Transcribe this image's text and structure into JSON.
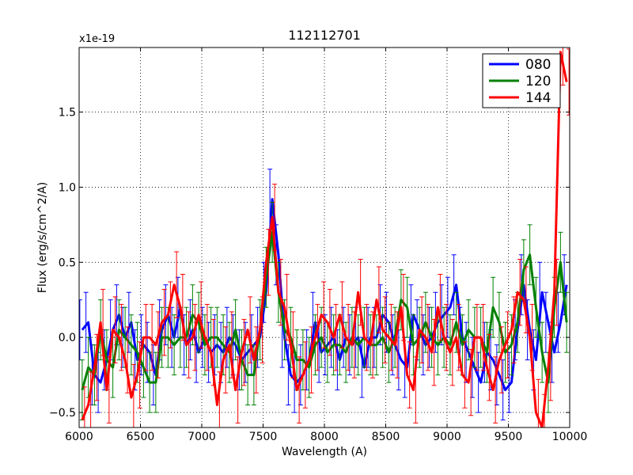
{
  "chart_data": {
    "type": "line",
    "title": "112112701",
    "xlabel": "Wavelength (A)",
    "ylabel": "Flux (erg/s/cm^2/A)",
    "scale_label": "x1e-19",
    "xlim": [
      6000,
      10000
    ],
    "ylim": [
      -0.6,
      1.93
    ],
    "xticks": [
      6000,
      6500,
      7000,
      7500,
      8000,
      8500,
      9000,
      9500,
      10000
    ],
    "yticks": [
      -0.5,
      0.0,
      0.5,
      1.0,
      1.5
    ],
    "ytick_labels": [
      "−0.5",
      "0.0",
      "0.5",
      "1.0",
      "1.5"
    ],
    "grid": true,
    "legend_position": "top-right",
    "series": [
      {
        "name": "080",
        "color": "#0000ff",
        "x": [
          6025,
          6075,
          6125,
          6175,
          6225,
          6275,
          6325,
          6375,
          6425,
          6475,
          6525,
          6575,
          6625,
          6675,
          6725,
          6775,
          6825,
          6875,
          6925,
          6975,
          7025,
          7075,
          7125,
          7175,
          7225,
          7275,
          7325,
          7375,
          7425,
          7475,
          7525,
          7575,
          7625,
          7675,
          7725,
          7775,
          7825,
          7875,
          7925,
          7975,
          8025,
          8075,
          8125,
          8175,
          8225,
          8275,
          8325,
          8375,
          8425,
          8475,
          8525,
          8575,
          8625,
          8675,
          8725,
          8775,
          8825,
          8875,
          8925,
          8975,
          9025,
          9075,
          9125,
          9175,
          9225,
          9275,
          9325,
          9375,
          9425,
          9475,
          9525,
          9575,
          9625,
          9675,
          9725,
          9775,
          9825,
          9875,
          9925,
          9975
        ],
        "y": [
          0.05,
          0.1,
          -0.25,
          -0.3,
          -0.15,
          0.05,
          0.15,
          0.0,
          0.1,
          -0.15,
          -0.05,
          -0.1,
          -0.25,
          0.05,
          0.15,
          0.0,
          0.2,
          -0.05,
          0.05,
          -0.1,
          0.0,
          -0.1,
          -0.05,
          -0.1,
          0.0,
          -0.05,
          -0.15,
          -0.1,
          -0.05,
          0.0,
          0.3,
          0.92,
          0.55,
          0.0,
          -0.25,
          -0.3,
          -0.25,
          -0.15,
          0.1,
          -0.1,
          -0.05,
          0.0,
          -0.15,
          0.0,
          -0.05,
          0.0,
          -0.2,
          0.0,
          0.0,
          0.15,
          0.1,
          -0.05,
          -0.15,
          -0.2,
          0.15,
          0.05,
          -0.05,
          0.0,
          0.1,
          0.15,
          0.2,
          0.35,
          0.0,
          -0.1,
          -0.2,
          -0.3,
          -0.1,
          -0.15,
          -0.25,
          -0.35,
          -0.3,
          0.05,
          0.35,
          0.05,
          -0.15,
          0.3,
          0.1,
          -0.1,
          0.1,
          0.35
        ],
        "err": 0.2
      },
      {
        "name": "120",
        "color": "#008000",
        "x": [
          6025,
          6075,
          6125,
          6175,
          6225,
          6275,
          6325,
          6375,
          6425,
          6475,
          6525,
          6575,
          6625,
          6675,
          6725,
          6775,
          6825,
          6875,
          6925,
          6975,
          7025,
          7075,
          7125,
          7175,
          7225,
          7275,
          7325,
          7375,
          7425,
          7475,
          7525,
          7575,
          7625,
          7675,
          7725,
          7775,
          7825,
          7875,
          7925,
          7975,
          8025,
          8075,
          8125,
          8175,
          8225,
          8275,
          8325,
          8375,
          8425,
          8475,
          8525,
          8575,
          8625,
          8675,
          8725,
          8775,
          8825,
          8875,
          8925,
          8975,
          9025,
          9075,
          9125,
          9175,
          9225,
          9275,
          9325,
          9375,
          9425,
          9475,
          9525,
          9575,
          9625,
          9675,
          9725,
          9775,
          9825,
          9875,
          9925,
          9975
        ],
        "y": [
          -0.35,
          -0.2,
          -0.25,
          0.05,
          -0.15,
          -0.2,
          0.05,
          0.0,
          -0.05,
          -0.1,
          -0.2,
          -0.3,
          -0.3,
          0.0,
          0.0,
          -0.05,
          0.0,
          0.0,
          0.15,
          0.1,
          -0.05,
          0.0,
          0.0,
          -0.05,
          -0.1,
          0.05,
          -0.15,
          -0.25,
          -0.25,
          0.05,
          0.4,
          0.7,
          0.3,
          0.05,
          0.0,
          -0.15,
          -0.15,
          -0.2,
          -0.05,
          0.0,
          -0.1,
          -0.05,
          -0.05,
          -0.1,
          0.0,
          -0.05,
          0.0,
          -0.05,
          -0.05,
          0.0,
          -0.1,
          0.0,
          0.25,
          0.2,
          -0.05,
          0.0,
          0.1,
          0.0,
          -0.05,
          0.0,
          -0.05,
          0.1,
          -0.05,
          0.05,
          0.0,
          0.0,
          -0.1,
          0.2,
          0.1,
          -0.1,
          -0.05,
          0.1,
          0.45,
          0.55,
          0.2,
          -0.1,
          -0.3,
          0.2,
          0.5,
          0.1
        ],
        "err": 0.2
      },
      {
        "name": "144",
        "color": "#ff0000",
        "x": [
          6025,
          6075,
          6125,
          6175,
          6225,
          6275,
          6325,
          6375,
          6425,
          6475,
          6525,
          6575,
          6625,
          6675,
          6725,
          6775,
          6825,
          6875,
          6925,
          6975,
          7025,
          7075,
          7125,
          7175,
          7225,
          7275,
          7325,
          7375,
          7425,
          7475,
          7525,
          7575,
          7625,
          7675,
          7725,
          7775,
          7825,
          7875,
          7925,
          7975,
          8025,
          8075,
          8125,
          8175,
          8225,
          8275,
          8325,
          8375,
          8425,
          8475,
          8525,
          8575,
          8625,
          8675,
          8725,
          8775,
          8825,
          8875,
          8925,
          8975,
          9025,
          9075,
          9125,
          9175,
          9225,
          9275,
          9325,
          9375,
          9425,
          9475,
          9525,
          9575,
          9625,
          9675,
          9725,
          9775,
          9825,
          9875,
          9925,
          9975
        ],
        "y": [
          -0.55,
          -0.45,
          -0.2,
          0.1,
          -0.35,
          0.05,
          0.0,
          -0.15,
          -0.4,
          -0.25,
          0.0,
          0.0,
          -0.05,
          0.1,
          0.15,
          0.35,
          0.2,
          -0.05,
          0.0,
          0.15,
          0.0,
          -0.1,
          -0.45,
          -0.15,
          -0.05,
          -0.35,
          -0.1,
          0.05,
          -0.15,
          0.05,
          0.5,
          0.8,
          0.3,
          0.2,
          -0.05,
          -0.35,
          -0.25,
          -0.15,
          0.0,
          0.15,
          0.1,
          0.0,
          0.15,
          0.0,
          -0.05,
          0.3,
          0.0,
          -0.05,
          0.25,
          0.05,
          0.0,
          -0.05,
          0.2,
          -0.25,
          -0.35,
          0.05,
          0.0,
          -0.1,
          0.2,
          0.0,
          -0.1,
          0.0,
          -0.25,
          -0.3,
          0.0,
          0.0,
          -0.2,
          -0.35,
          -0.15,
          -0.05,
          0.05,
          0.3,
          0.25,
          0.0,
          -0.5,
          -0.6,
          -0.2,
          0.3,
          1.9,
          1.7
        ],
        "err": 0.22
      }
    ]
  }
}
